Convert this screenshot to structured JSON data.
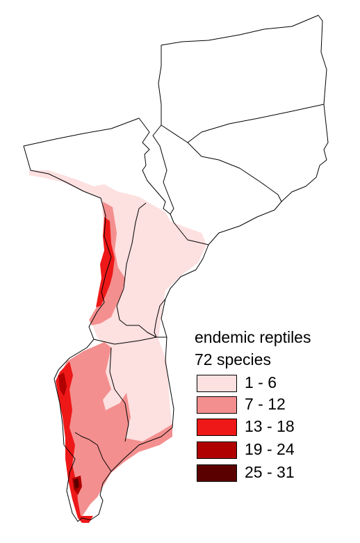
{
  "legend": {
    "title_line1": "endemic reptiles",
    "title_line2": "72 species",
    "classes": [
      {
        "label": "1 - 6",
        "color": "#fde0e0"
      },
      {
        "label": "7 - 12",
        "color": "#f48f8f"
      },
      {
        "label": "13 - 18",
        "color": "#ee1818"
      },
      {
        "label": "19 - 24",
        "color": "#b00000"
      },
      {
        "label": "25 - 31",
        "color": "#5a0000"
      }
    ]
  },
  "colors": {
    "boundary": "#000000",
    "background": "#ffffff"
  }
}
